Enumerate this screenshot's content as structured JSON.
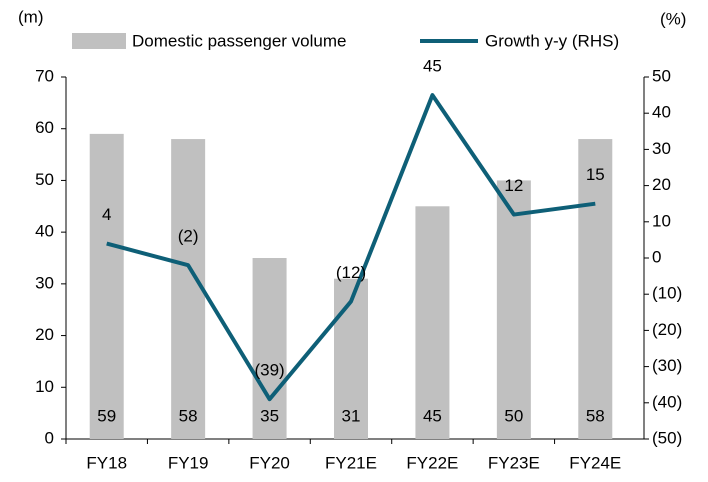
{
  "chart_data": {
    "type": "bar",
    "ylabel": "(m)",
    "y2label": "(%)",
    "categories": [
      "FY18",
      "FY19",
      "FY20",
      "FY21E",
      "FY22E",
      "FY23E",
      "FY24E"
    ],
    "series": [
      {
        "name": "Domestic passenger volume",
        "type": "bar",
        "color": "#c0c0c0",
        "values": [
          59,
          58,
          35,
          31,
          45,
          50,
          58
        ]
      },
      {
        "name": "Growth y-y (RHS)",
        "type": "line",
        "axis": "y2",
        "color": "#0e5f77",
        "values": [
          4,
          -2,
          -39,
          -12,
          45,
          12,
          15
        ],
        "value_labels": [
          "4",
          "(2)",
          "(39)",
          "(12)",
          "45",
          "12",
          "15"
        ]
      }
    ],
    "ylim": [
      0,
      70
    ],
    "yticks": [
      0,
      10,
      20,
      30,
      40,
      50,
      60,
      70
    ],
    "y2lim": [
      -50,
      50
    ],
    "y2ticks": [
      {
        "value": -50,
        "label": "(50)"
      },
      {
        "value": -40,
        "label": "(40)"
      },
      {
        "value": -30,
        "label": "(30)"
      },
      {
        "value": -20,
        "label": "(20)"
      },
      {
        "value": -10,
        "label": "(10)"
      },
      0,
      10,
      20,
      30,
      40,
      50
    ],
    "legend": "top",
    "grid": false
  }
}
